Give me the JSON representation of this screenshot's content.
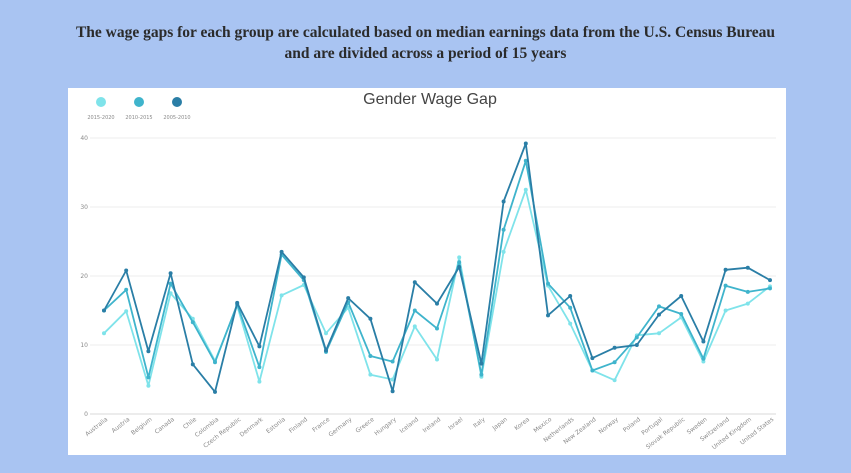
{
  "headline": {
    "line1": "The wage gaps for each group are calculated based on median earnings data from the U.S. Census Bureau",
    "line2": "and are divided across a period of 15 years"
  },
  "chart_data": {
    "type": "line",
    "title": "Gender Wage Gap",
    "xlabel": "",
    "ylabel": "",
    "ylim": [
      0,
      40
    ],
    "yticks": [
      0,
      10,
      20,
      30,
      40
    ],
    "grid": true,
    "legend_position": "top-left",
    "categories": [
      "Australia",
      "Austria",
      "Belgium",
      "Canada",
      "Chile",
      "Colombia",
      "Czech Republic",
      "Denmark",
      "Estonia",
      "Finland",
      "France",
      "Germany",
      "Greece",
      "Hungary",
      "Iceland",
      "Ireland",
      "Israel",
      "Italy",
      "Japan",
      "Korea",
      "Mexico",
      "Netherlands",
      "New Zealand",
      "Norway",
      "Poland",
      "Portugal",
      "Slovak Republic",
      "Sweden",
      "Switzerland",
      "United Kingdom",
      "United States"
    ],
    "series": [
      {
        "name": "2015-2020",
        "color": "#7fe3ea",
        "values": [
          11.7,
          14.9,
          4.1,
          17.5,
          13.8,
          7.7,
          15.7,
          4.7,
          17.2,
          18.7,
          11.7,
          15.4,
          5.7,
          5.0,
          12.7,
          7.9,
          22.7,
          5.4,
          23.5,
          32.5,
          18.6,
          13.1,
          6.3,
          4.9,
          11.4,
          11.7,
          14.0,
          7.6,
          15.0,
          16.0,
          18.5
        ]
      },
      {
        "name": "2010-2015",
        "color": "#3fb4cc",
        "values": [
          15.0,
          18.0,
          5.3,
          18.9,
          13.3,
          7.5,
          15.9,
          6.8,
          23.1,
          19.4,
          9.0,
          16.2,
          8.4,
          7.6,
          15.0,
          12.4,
          22.0,
          5.7,
          26.7,
          36.7,
          18.9,
          15.4,
          6.3,
          7.5,
          11.1,
          15.6,
          14.5,
          8.0,
          18.6,
          17.7,
          18.2
        ]
      },
      {
        "name": "2005-2010",
        "color": "#2a7ea6",
        "values": [
          15.0,
          20.8,
          9.1,
          20.4,
          7.2,
          3.2,
          16.1,
          9.8,
          23.5,
          19.8,
          9.2,
          16.8,
          13.8,
          3.3,
          19.1,
          16.0,
          21.3,
          7.3,
          30.8,
          39.2,
          14.3,
          17.1,
          8.1,
          9.6,
          10.0,
          14.4,
          17.1,
          10.5,
          20.9,
          21.2,
          19.4
        ]
      }
    ]
  }
}
